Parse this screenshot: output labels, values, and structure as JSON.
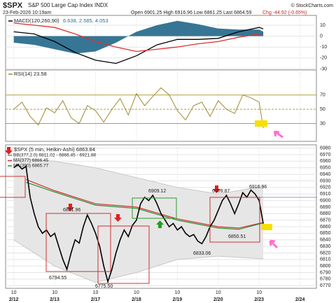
{
  "header": {
    "title": "$SPX",
    "subtitle": "S&P 500 Large Cap Index  INDX",
    "date": "23-Feb-2026 10:19am",
    "quote": "Open 6901.25  High 6916.96  Low 6861.25  Last 6864.59",
    "change": "Chg -44.92 (-0.65%)",
    "credit": "© StockCharts.com"
  },
  "annotations": [
    "6881.96",
    "6909.12",
    "6909.87",
    "6916.96",
    "6794.55",
    "6775.50",
    "6833.06",
    "6850.51"
  ],
  "chart_data": [
    {
      "type": "macd",
      "legend": "MACD(120,260,90)",
      "legend_values": "6.638, 2.585, 4.053",
      "x": [
        0,
        0.5,
        1,
        1.5,
        2,
        2.5,
        3,
        3.5,
        4,
        4.5,
        5,
        5.5,
        6,
        6.1
      ],
      "series": [
        {
          "style": "area",
          "color": "#2b6f8e",
          "values": [
            -6,
            -8,
            -12,
            -16,
            -14,
            -6,
            4,
            10,
            14,
            11,
            7,
            6,
            6,
            4.053
          ]
        },
        {
          "style": "line",
          "color": "#000000",
          "values": [
            4,
            2,
            -5,
            -15,
            -22,
            -25,
            -18,
            -8,
            -3,
            -3,
            -2,
            4,
            8,
            6.638
          ]
        },
        {
          "style": "line",
          "color": "#e03030",
          "values": [
            12,
            10,
            8,
            2,
            -5,
            -10,
            -14,
            -12,
            -10,
            -7,
            -5,
            -1,
            2,
            2.585
          ]
        }
      ],
      "xlim": [
        -0.2,
        7.4
      ],
      "ylim": [
        -31,
        19
      ],
      "yticks": [
        10,
        0,
        -10,
        -20,
        -30
      ],
      "grid": true
    },
    {
      "type": "rsi",
      "legend": "RSI(14) 23.58",
      "color": "#a08a30",
      "x": [
        0,
        0.2,
        0.4,
        0.6,
        0.8,
        1,
        1.2,
        1.4,
        1.6,
        1.8,
        2,
        2.2,
        2.4,
        2.6,
        2.8,
        3,
        3.2,
        3.4,
        3.6,
        3.8,
        4,
        4.2,
        4.4,
        4.6,
        4.8,
        5,
        5.2,
        5.4,
        5.6,
        5.8,
        6,
        6.1
      ],
      "values": [
        50,
        60,
        40,
        28,
        52,
        45,
        62,
        38,
        30,
        55,
        48,
        32,
        50,
        65,
        42,
        72,
        55,
        68,
        80,
        70,
        48,
        35,
        55,
        60,
        40,
        62,
        50,
        44,
        70,
        66,
        60,
        23.58
      ],
      "xlim": [
        -0.2,
        7.4
      ],
      "ylim": [
        5,
        105
      ],
      "yticks": [
        30,
        50,
        70
      ],
      "grid": true
    },
    {
      "type": "price",
      "legend": "$SPX (5 min, Heikin-Ashi) 6863.84",
      "color": "#000000",
      "x": [
        0,
        0.1,
        0.2,
        0.3,
        0.4,
        0.5,
        0.6,
        0.7,
        0.8,
        0.9,
        1,
        1.1,
        1.2,
        1.3,
        1.4,
        1.5,
        1.6,
        1.7,
        1.8,
        1.9,
        2,
        2.1,
        2.2,
        2.3,
        2.4,
        2.5,
        2.6,
        2.7,
        2.8,
        2.9,
        3,
        3.1,
        3.2,
        3.3,
        3.4,
        3.5,
        3.6,
        3.7,
        3.8,
        3.9,
        4,
        4.1,
        4.2,
        4.3,
        4.4,
        4.5,
        4.6,
        4.7,
        4.8,
        4.9,
        5,
        5.1,
        5.2,
        5.3,
        5.4,
        5.5,
        5.6,
        5.7,
        5.8,
        5.9,
        6,
        6.1
      ],
      "values": [
        6950,
        6955,
        6948,
        6952,
        6905,
        6880,
        6860,
        6850,
        6855,
        6845,
        6850,
        6830,
        6810,
        6795,
        6820,
        6840,
        6835,
        6860,
        6878,
        6865,
        6850,
        6830,
        6800,
        6776,
        6795,
        6820,
        6840,
        6855,
        6845,
        6862,
        6870,
        6895,
        6905,
        6900,
        6908,
        6895,
        6880,
        6870,
        6860,
        6865,
        6855,
        6860,
        6850,
        6845,
        6848,
        6838,
        6834,
        6845,
        6860,
        6870,
        6885,
        6900,
        6908,
        6895,
        6880,
        6895,
        6912,
        6905,
        6916,
        6910,
        6900,
        6864.59
      ],
      "band": {
        "name": "BB(377,2.0) 6811.02 - 6866.45 - 6921.88",
        "color": "#888888",
        "x": [
          0,
          1,
          2,
          3,
          4,
          5,
          6.1
        ],
        "upper": [
          6965,
          6960,
          6950,
          6935,
          6920,
          6910,
          6921.88
        ],
        "lower": [
          6840,
          6800,
          6775,
          6790,
          6810,
          6815,
          6811.02
        ]
      },
      "series": [
        {
          "name": "MA(377) 6866.45",
          "color": "#d03030",
          "x": [
            0.3,
            1,
            2,
            3,
            4,
            5,
            5.5,
            6.1
          ],
          "values": [
            6932,
            6915,
            6895,
            6890,
            6872,
            6860,
            6858,
            6866.45
          ]
        },
        {
          "name": "MA(390) 6865.77",
          "color": "#2e8b2e",
          "x": [
            0.3,
            1,
            2,
            3,
            4,
            5,
            5.5,
            6.1
          ],
          "values": [
            6928,
            6913,
            6893,
            6888,
            6870,
            6858,
            6856,
            6865.77
          ]
        }
      ],
      "xlim": [
        -0.2,
        7.4
      ],
      "ylim": [
        6766,
        6985
      ],
      "yticks": [
        6770,
        6780,
        6790,
        6800,
        6810,
        6820,
        6830,
        6840,
        6850,
        6860,
        6870,
        6880,
        6890,
        6900,
        6910,
        6920,
        6930,
        6940,
        6950,
        6960,
        6970,
        6980
      ],
      "hour_ticks": [
        {
          "value": 0,
          "label": "10"
        },
        {
          "value": 1,
          "label": "10"
        },
        {
          "value": 2,
          "label": "10"
        },
        {
          "value": 3,
          "label": "10"
        },
        {
          "value": 4,
          "label": "10"
        },
        {
          "value": 5,
          "label": "10"
        },
        {
          "value": 6,
          "label": "10"
        }
      ],
      "xticks": [
        {
          "value": 0,
          "label": "2/12"
        },
        {
          "value": 1,
          "label": "2/13"
        },
        {
          "value": 2,
          "label": "2/17"
        },
        {
          "value": 3,
          "label": "2/18"
        },
        {
          "value": 4,
          "label": "2/19"
        },
        {
          "value": 5,
          "label": "2/20"
        },
        {
          "value": 6,
          "label": "2/23"
        },
        {
          "value": 7,
          "label": "2/24"
        }
      ],
      "grid": true
    }
  ]
}
